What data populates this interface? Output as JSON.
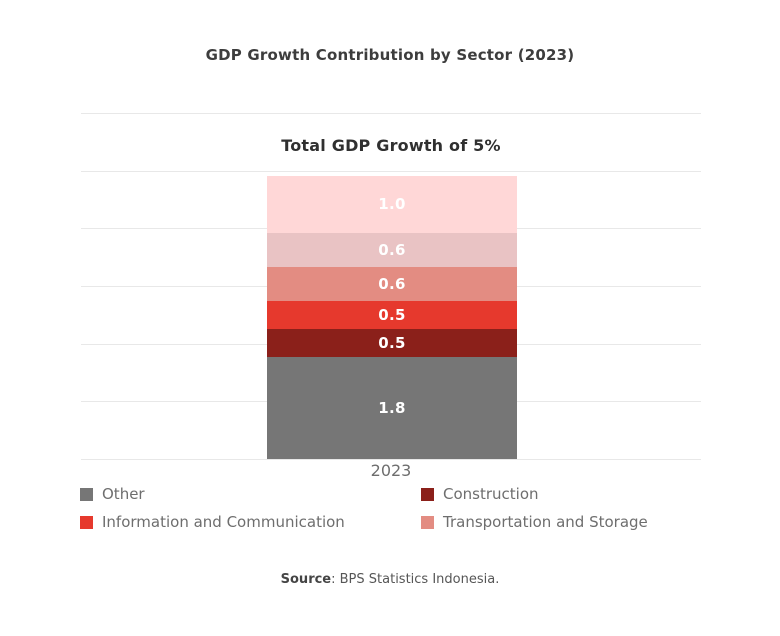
{
  "chart_data": {
    "type": "bar",
    "variant": "stacked",
    "title": "GDP Growth Contribution by Sector (2023)",
    "subtitle": "Total GDP Growth of 5%",
    "categories": [
      "2023"
    ],
    "stack_order": "bottom-to-top",
    "series": [
      {
        "name": "Other",
        "values": [
          1.8
        ],
        "label": "1.8",
        "color": "#767676"
      },
      {
        "name": "Construction",
        "values": [
          0.5
        ],
        "label": "0.5",
        "color": "#8b201a"
      },
      {
        "name": "Information and Communication",
        "values": [
          0.5
        ],
        "label": "0.5",
        "color": "#e6392d"
      },
      {
        "name": "Transportation and Storage",
        "values": [
          0.6
        ],
        "label": "0.6",
        "color": "#e38c82"
      },
      {
        "name": "",
        "values": [
          0.6
        ],
        "label": "0.6",
        "color": "#e9c3c4"
      },
      {
        "name": "",
        "values": [
          1.0
        ],
        "label": "1.0",
        "color": "#ffd7d7"
      }
    ],
    "total": 5.0,
    "ylim": [
      0,
      6
    ],
    "gridline_values": [
      0,
      1,
      2,
      3,
      4,
      5,
      6
    ],
    "grid": true,
    "gridline_color": "#e8e8e8",
    "value_label_color": "#ffffff",
    "legend_position": "bottom"
  },
  "legend": {
    "items": [
      {
        "label": "Other",
        "color": "#767676"
      },
      {
        "label": "Construction",
        "color": "#8b201a"
      },
      {
        "label": "Information and Communication",
        "color": "#e6392d"
      },
      {
        "label": "Transportation and Storage",
        "color": "#e38c82"
      }
    ]
  },
  "x_axis": {
    "label": "2023"
  },
  "source": {
    "prefix": "Source",
    "text": ": BPS Statistics Indonesia."
  }
}
